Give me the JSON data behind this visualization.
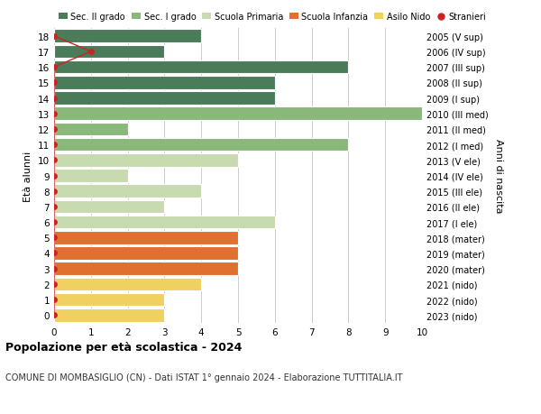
{
  "ages": [
    18,
    17,
    16,
    15,
    14,
    13,
    12,
    11,
    10,
    9,
    8,
    7,
    6,
    5,
    4,
    3,
    2,
    1,
    0
  ],
  "right_labels": [
    "2005 (V sup)",
    "2006 (IV sup)",
    "2007 (III sup)",
    "2008 (II sup)",
    "2009 (I sup)",
    "2010 (III med)",
    "2011 (II med)",
    "2012 (I med)",
    "2013 (V ele)",
    "2014 (IV ele)",
    "2015 (III ele)",
    "2016 (II ele)",
    "2017 (I ele)",
    "2018 (mater)",
    "2019 (mater)",
    "2020 (mater)",
    "2021 (nido)",
    "2022 (nido)",
    "2023 (nido)"
  ],
  "values": [
    4,
    3,
    8,
    6,
    6,
    10,
    2,
    8,
    5,
    2,
    4,
    3,
    6,
    5,
    5,
    5,
    4,
    3,
    3
  ],
  "bar_colors": [
    "#4a7c59",
    "#4a7c59",
    "#4a7c59",
    "#4a7c59",
    "#4a7c59",
    "#8ab87a",
    "#8ab87a",
    "#8ab87a",
    "#c8dbb0",
    "#c8dbb0",
    "#c8dbb0",
    "#c8dbb0",
    "#c8dbb0",
    "#e07030",
    "#e07030",
    "#e07030",
    "#f0d060",
    "#f0d060",
    "#f0d060"
  ],
  "sec2_color": "#4a7c59",
  "sec1_color": "#8ab87a",
  "primaria_color": "#c8dbb0",
  "infanzia_color": "#e07030",
  "nido_color": "#f0d060",
  "stranieri_color": "#cc2222",
  "legend_labels": [
    "Sec. II grado",
    "Sec. I grado",
    "Scuola Primaria",
    "Scuola Infanzia",
    "Asilo Nido",
    "Stranieri"
  ],
  "ylabel_left": "Età alunni",
  "ylabel_right": "Anni di nascita",
  "xlim": [
    0,
    10
  ],
  "xticks": [
    0,
    1,
    2,
    3,
    4,
    5,
    6,
    7,
    8,
    9,
    10
  ],
  "title": "Popolazione per età scolastica - 2024",
  "subtitle": "COMUNE DI MOMBASIGLIO (CN) - Dati ISTAT 1° gennaio 2024 - Elaborazione TUTTITALIA.IT",
  "background_color": "#ffffff",
  "grid_color": "#cccccc",
  "bar_edge_color": "#ffffff",
  "stranieri_dot_x": [
    0,
    1,
    0,
    0,
    0,
    0,
    0,
    0,
    0,
    0,
    0,
    0,
    0,
    0,
    0,
    0,
    0,
    0,
    0
  ]
}
